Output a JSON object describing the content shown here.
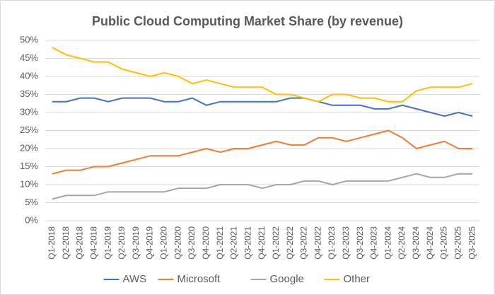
{
  "chart_data": {
    "type": "line",
    "title": "Public Cloud Computing Market Share (by revenue)",
    "categories": [
      "Q1-2018",
      "Q2-2018",
      "Q3-2018",
      "Q4-2018",
      "Q1-2019",
      "Q2-2019",
      "Q3-2019",
      "Q4-2019",
      "Q1-2020",
      "Q2-2020",
      "Q3-2020",
      "Q4-2020",
      "Q1-2021",
      "Q2-2021",
      "Q3-2021",
      "Q4-2021",
      "Q1-2022",
      "Q2-2022",
      "Q3-2022",
      "Q4-2022",
      "Q1-2023",
      "Q2-2023",
      "Q3-2023",
      "Q4-2023",
      "Q1-2024",
      "Q2-2024",
      "Q3-2024",
      "Q4-2024",
      "Q1-2025",
      "Q2-2025",
      "Q3-2025"
    ],
    "series": [
      {
        "name": "AWS",
        "color": "#4472c4",
        "values": [
          33,
          33,
          34,
          34,
          33,
          34,
          34,
          34,
          33,
          33,
          34,
          32,
          33,
          33,
          33,
          33,
          33,
          34,
          34,
          33,
          32,
          32,
          32,
          31,
          31,
          32,
          31,
          30,
          29,
          30,
          29
        ]
      },
      {
        "name": "Microsoft",
        "color": "#ed7d31",
        "values": [
          13,
          14,
          14,
          15,
          15,
          16,
          17,
          18,
          18,
          18,
          19,
          20,
          19,
          20,
          20,
          21,
          22,
          21,
          21,
          23,
          23,
          22,
          23,
          24,
          25,
          23,
          20,
          21,
          22,
          20,
          20
        ]
      },
      {
        "name": "Google",
        "color": "#a5a5a5",
        "values": [
          6,
          7,
          7,
          7,
          8,
          8,
          8,
          8,
          8,
          9,
          9,
          9,
          10,
          10,
          10,
          9,
          10,
          10,
          11,
          11,
          10,
          11,
          11,
          11,
          11,
          12,
          13,
          12,
          12,
          13,
          13
        ]
      },
      {
        "name": "Other",
        "color": "#ffc000",
        "values": [
          48,
          46,
          45,
          44,
          44,
          42,
          41,
          40,
          41,
          40,
          38,
          39,
          38,
          37,
          37,
          37,
          35,
          35,
          34,
          33,
          35,
          35,
          34,
          34,
          33,
          33,
          36,
          37,
          37,
          37,
          38
        ]
      }
    ],
    "ylim": [
      0,
      50
    ],
    "yticks": [
      {
        "value": 0,
        "label": "0%"
      },
      {
        "value": 5,
        "label": "5%"
      },
      {
        "value": 10,
        "label": "10%"
      },
      {
        "value": 15,
        "label": "15%"
      },
      {
        "value": 20,
        "label": "20%"
      },
      {
        "value": 25,
        "label": "25%"
      },
      {
        "value": 30,
        "label": "30%"
      },
      {
        "value": 35,
        "label": "35%"
      },
      {
        "value": 40,
        "label": "40%"
      },
      {
        "value": 45,
        "label": "45%"
      },
      {
        "value": 50,
        "label": "50%"
      }
    ],
    "grid": true,
    "legend": "bottom"
  }
}
